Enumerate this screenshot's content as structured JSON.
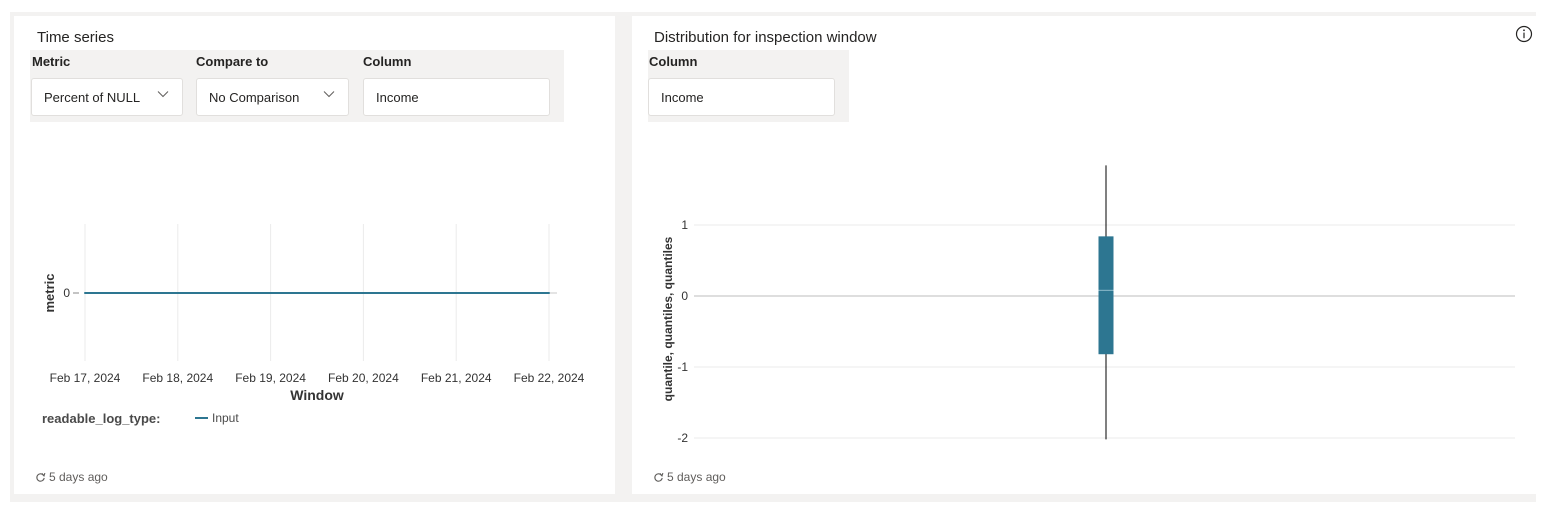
{
  "timeseries": {
    "title": "Time series",
    "metric_label": "Metric",
    "metric_value": "Percent of NULL",
    "compare_label": "Compare to",
    "compare_value": "No Comparison",
    "column_label": "Column",
    "column_value": "Income",
    "footer": "5 days ago",
    "legend_title": "readable_log_type:",
    "chart_data": {
      "type": "line",
      "x": [
        "Feb 17, 2024",
        "Feb 18, 2024",
        "Feb 19, 2024",
        "Feb 20, 2024",
        "Feb 21, 2024",
        "Feb 22, 2024"
      ],
      "series": [
        {
          "name": "Input",
          "values": [
            0,
            0,
            0,
            0,
            0,
            0
          ],
          "color": "#2d7691"
        }
      ],
      "xlabel": "Window",
      "ylabel": "metric",
      "yticks": [
        0
      ],
      "legend_position": "bottom-left"
    }
  },
  "distribution": {
    "title": "Distribution for inspection window",
    "column_label": "Column",
    "column_value": "Income",
    "footer": "5 days ago",
    "chart_data": {
      "type": "box",
      "series": [
        {
          "min": -2.02,
          "q1": -0.82,
          "median": 0.08,
          "q3": 0.84,
          "max": 1.84,
          "color": "#2d7691"
        }
      ],
      "ylabel": "quantile, quantiles, quantiles",
      "yticks": [
        1,
        0,
        -1,
        -2
      ],
      "ylim": [
        -2.02,
        1.84
      ]
    }
  }
}
